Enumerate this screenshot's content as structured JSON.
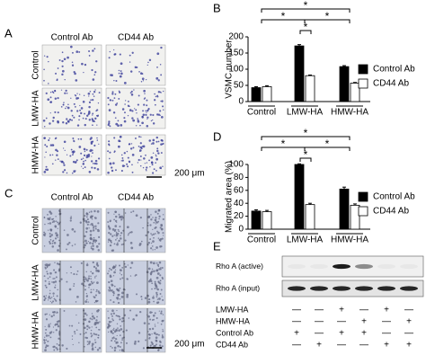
{
  "figure": {
    "panel_a": {
      "label": "A",
      "columns": [
        "Control Ab",
        "CD44 Ab"
      ],
      "rows": [
        "Control",
        "LMW-HA",
        "HMW-HA"
      ],
      "scale": "200 μm"
    },
    "panel_c": {
      "label": "C",
      "columns": [
        "Control Ab",
        "CD44 Ab"
      ],
      "rows": [
        "Control",
        "LMW-HA",
        "HMW-HA"
      ],
      "scale": "200 μm"
    },
    "panel_e": {
      "label": "E",
      "bands": [
        "Rho A (active)",
        "Rho A (input)"
      ],
      "conditions": [
        {
          "name": "LMW-HA",
          "marks": [
            "—",
            "—",
            "+",
            "—",
            "+",
            "—"
          ]
        },
        {
          "name": "HMW-HA",
          "marks": [
            "—",
            "—",
            "—",
            "+",
            "—",
            "+"
          ]
        },
        {
          "name": "Control Ab",
          "marks": [
            "+",
            "—",
            "+",
            "+",
            "—",
            "—"
          ]
        },
        {
          "name": "CD44 Ab",
          "marks": [
            "—",
            "+",
            "—",
            "—",
            "+",
            "+"
          ]
        }
      ]
    }
  },
  "chart_data": [
    {
      "type": "bar",
      "label": "B",
      "ylabel": "VSMC number",
      "categories": [
        "Control",
        "LMW-HA",
        "HMW-HA"
      ],
      "series": [
        {
          "name": "Control Ab",
          "color": "#000000",
          "values": [
            43,
            172,
            108
          ],
          "errors": [
            3,
            4,
            3
          ]
        },
        {
          "name": "CD44 Ab",
          "color": "#ffffff",
          "values": [
            46,
            80,
            57
          ],
          "errors": [
            3,
            2,
            2
          ]
        }
      ],
      "ylim": [
        0,
        200
      ],
      "yticks": [
        0,
        50,
        100,
        150,
        200
      ],
      "annotations": [
        "*",
        "*",
        "*",
        "*"
      ]
    },
    {
      "type": "bar",
      "label": "D",
      "ylabel": "Migrated area (%)",
      "categories": [
        "Control",
        "LMW-HA",
        "HMW-HA"
      ],
      "series": [
        {
          "name": "Control Ab",
          "color": "#000000",
          "values": [
            28,
            100,
            62
          ],
          "errors": [
            2,
            1,
            3
          ]
        },
        {
          "name": "CD44 Ab",
          "color": "#ffffff",
          "values": [
            27,
            38,
            37
          ],
          "errors": [
            2,
            2,
            2
          ]
        }
      ],
      "ylim": [
        0,
        100
      ],
      "yticks": [
        0,
        20,
        40,
        60,
        80,
        100
      ],
      "annotations": [
        "*",
        "*",
        "*",
        "*"
      ]
    }
  ]
}
